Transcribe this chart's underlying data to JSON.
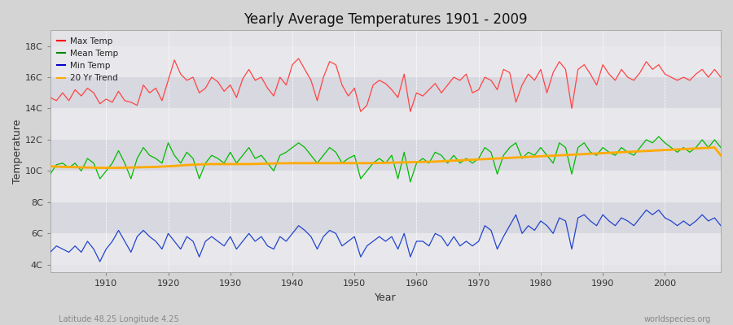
{
  "title": "Yearly Average Temperatures 1901 - 2009",
  "xlabel": "Year",
  "ylabel": "Temperature",
  "subtitle": "Latitude 48.25 Longitude 4.25",
  "watermark": "worldspecies.org",
  "yticks": [
    4,
    6,
    8,
    10,
    12,
    14,
    16,
    18
  ],
  "ytick_labels": [
    "4C",
    "6C",
    "8C",
    "10C",
    "12C",
    "14C",
    "16C",
    "18C"
  ],
  "ylim": [
    3.5,
    19.0
  ],
  "xlim": [
    1901,
    2009
  ],
  "legend_entries": [
    "Max Temp",
    "Mean Temp",
    "Min Temp",
    "20 Yr Trend"
  ],
  "legend_colors": [
    "#ff0000",
    "#008800",
    "#0000cc",
    "#ffaa00"
  ],
  "bg_color": "#d8d8d8",
  "band_light": "#e8e8e8",
  "band_dark": "#d0d0d8",
  "grid_color": "#ffffff",
  "line_colors": {
    "max": "#ff4444",
    "mean": "#00bb00",
    "min": "#2244cc",
    "trend": "#ffaa00"
  },
  "max_temp": [
    14.7,
    14.5,
    15.0,
    14.5,
    15.2,
    14.8,
    15.3,
    15.0,
    14.3,
    14.6,
    14.4,
    15.1,
    14.5,
    14.4,
    14.2,
    15.5,
    15.0,
    15.3,
    14.5,
    15.8,
    17.1,
    16.2,
    15.8,
    16.0,
    15.0,
    15.3,
    16.0,
    15.7,
    15.1,
    15.5,
    14.7,
    15.9,
    16.5,
    15.8,
    16.0,
    15.3,
    14.8,
    16.0,
    15.5,
    16.8,
    17.2,
    16.5,
    15.8,
    14.5,
    16.0,
    17.0,
    16.8,
    15.5,
    14.8,
    15.3,
    13.8,
    14.2,
    15.5,
    15.8,
    15.6,
    15.2,
    14.7,
    16.2,
    13.8,
    15.0,
    14.8,
    15.2,
    15.6,
    15.0,
    15.5,
    16.0,
    15.8,
    16.2,
    15.0,
    15.2,
    16.0,
    15.8,
    15.2,
    16.5,
    16.3,
    14.4,
    15.5,
    16.2,
    15.8,
    16.5,
    15.0,
    16.3,
    17.0,
    16.5,
    14.0,
    16.5,
    16.8,
    16.2,
    15.5,
    16.8,
    16.2,
    15.8,
    16.5,
    16.0,
    15.8,
    16.3,
    17.0,
    16.5,
    16.8,
    16.2,
    16.0,
    15.8,
    16.0,
    15.8,
    16.2,
    16.5,
    16.0,
    16.5,
    16.0
  ],
  "mean_temp": [
    9.8,
    10.4,
    10.5,
    10.2,
    10.5,
    10.0,
    10.8,
    10.5,
    9.5,
    10.0,
    10.5,
    11.3,
    10.5,
    9.5,
    10.8,
    11.5,
    11.0,
    10.8,
    10.5,
    11.8,
    11.0,
    10.5,
    11.2,
    10.8,
    9.5,
    10.5,
    11.0,
    10.8,
    10.5,
    11.2,
    10.5,
    11.0,
    11.5,
    10.8,
    11.0,
    10.5,
    10.0,
    11.0,
    11.2,
    11.5,
    11.8,
    11.5,
    11.0,
    10.5,
    11.0,
    11.5,
    11.2,
    10.5,
    10.8,
    11.0,
    9.5,
    10.0,
    10.5,
    10.8,
    10.5,
    11.0,
    9.5,
    11.2,
    9.3,
    10.5,
    10.8,
    10.5,
    11.2,
    11.0,
    10.5,
    11.0,
    10.5,
    10.8,
    10.5,
    10.8,
    11.5,
    11.2,
    9.8,
    11.0,
    11.5,
    11.8,
    10.8,
    11.2,
    11.0,
    11.5,
    11.0,
    10.5,
    11.8,
    11.5,
    9.8,
    11.5,
    11.8,
    11.2,
    11.0,
    11.5,
    11.2,
    11.0,
    11.5,
    11.2,
    11.0,
    11.5,
    12.0,
    11.8,
    12.2,
    11.8,
    11.5,
    11.2,
    11.5,
    11.2,
    11.5,
    12.0,
    11.5,
    12.0,
    11.5
  ],
  "min_temp": [
    4.8,
    5.2,
    5.0,
    4.8,
    5.2,
    4.8,
    5.5,
    5.0,
    4.2,
    5.0,
    5.5,
    6.2,
    5.5,
    4.8,
    5.8,
    6.2,
    5.8,
    5.5,
    5.0,
    6.0,
    5.5,
    5.0,
    5.8,
    5.5,
    4.5,
    5.5,
    5.8,
    5.5,
    5.2,
    5.8,
    5.0,
    5.5,
    6.0,
    5.5,
    5.8,
    5.2,
    5.0,
    5.8,
    5.5,
    6.0,
    6.5,
    6.2,
    5.8,
    5.0,
    5.8,
    6.2,
    6.0,
    5.2,
    5.5,
    5.8,
    4.5,
    5.2,
    5.5,
    5.8,
    5.5,
    5.8,
    5.0,
    6.0,
    4.5,
    5.5,
    5.5,
    5.2,
    6.0,
    5.8,
    5.2,
    5.8,
    5.2,
    5.5,
    5.2,
    5.5,
    6.5,
    6.2,
    5.0,
    5.8,
    6.5,
    7.2,
    6.0,
    6.5,
    6.2,
    6.8,
    6.5,
    6.0,
    7.0,
    6.8,
    5.0,
    7.0,
    7.2,
    6.8,
    6.5,
    7.2,
    6.8,
    6.5,
    7.0,
    6.8,
    6.5,
    7.0,
    7.5,
    7.2,
    7.5,
    7.0,
    6.8,
    6.5,
    6.8,
    6.5,
    6.8,
    7.2,
    6.8,
    7.0,
    6.5
  ],
  "trend": [
    10.3,
    10.28,
    10.26,
    10.25,
    10.24,
    10.23,
    10.22,
    10.21,
    10.2,
    10.2,
    10.2,
    10.2,
    10.21,
    10.22,
    10.23,
    10.24,
    10.25,
    10.26,
    10.28,
    10.3,
    10.32,
    10.35,
    10.38,
    10.4,
    10.42,
    10.43,
    10.44,
    10.44,
    10.44,
    10.44,
    10.44,
    10.44,
    10.44,
    10.45,
    10.46,
    10.47,
    10.48,
    10.49,
    10.49,
    10.5,
    10.5,
    10.5,
    10.5,
    10.5,
    10.5,
    10.5,
    10.5,
    10.5,
    10.5,
    10.5,
    10.5,
    10.5,
    10.5,
    10.51,
    10.52,
    10.53,
    10.54,
    10.55,
    10.56,
    10.57,
    10.58,
    10.59,
    10.6,
    10.62,
    10.64,
    10.66,
    10.68,
    10.7,
    10.72,
    10.74,
    10.76,
    10.78,
    10.8,
    10.82,
    10.84,
    10.86,
    10.88,
    10.9,
    10.92,
    10.94,
    10.96,
    10.98,
    11.0,
    11.02,
    11.04,
    11.06,
    11.08,
    11.1,
    11.12,
    11.14,
    11.16,
    11.18,
    11.2,
    11.22,
    11.24,
    11.26,
    11.28,
    11.3,
    11.32,
    11.34,
    11.36,
    11.38,
    11.4,
    11.42,
    11.44,
    11.46,
    11.48,
    11.5,
    11.0
  ]
}
